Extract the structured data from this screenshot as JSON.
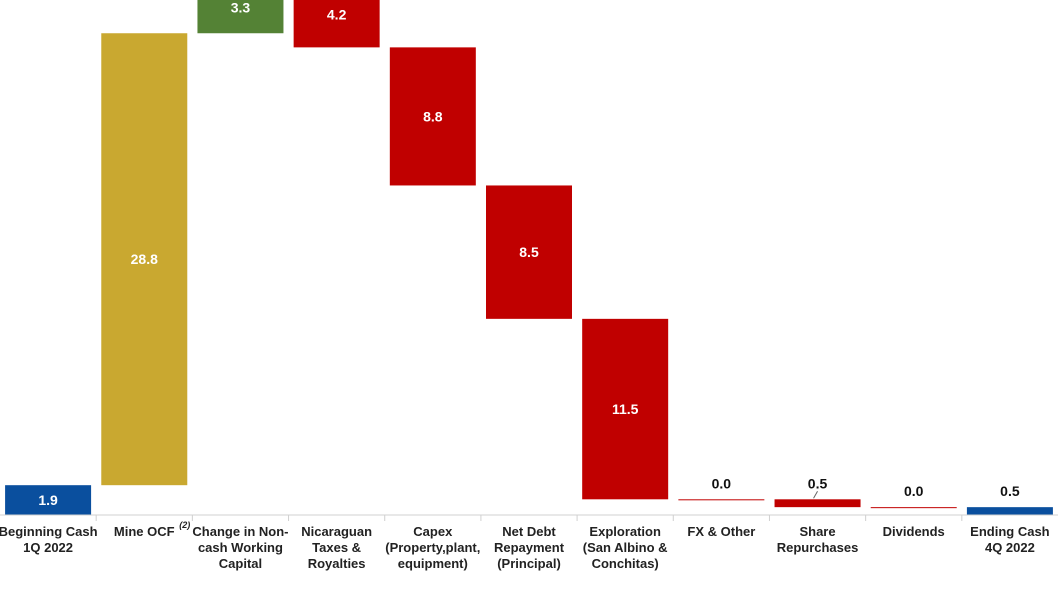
{
  "chart_data": {
    "type": "waterfall",
    "title": "",
    "xlabel": "",
    "ylabel": "",
    "grid": false,
    "legend": "none",
    "ylim": [
      0,
      32.5
    ],
    "steps": [
      {
        "label_lines": [
          "Beginning Cash",
          "1Q 2022"
        ],
        "kind": "total",
        "value": 1.9,
        "label": "1.9"
      },
      {
        "label_lines": [
          "Mine OCF"
        ],
        "kind": "increase",
        "value": 28.8,
        "label": "28.8",
        "footnote": "(2)"
      },
      {
        "label_lines": [
          "Change in Non-",
          "cash Working",
          "Capital"
        ],
        "kind": "increase",
        "value": 3.3,
        "label": "3.3"
      },
      {
        "label_lines": [
          "Nicaraguan",
          "Taxes &",
          "Royalties"
        ],
        "kind": "decrease",
        "value": 4.2,
        "label": "4.2"
      },
      {
        "label_lines": [
          "Capex",
          "(Property,plant,",
          "equipment)"
        ],
        "kind": "decrease",
        "value": 8.8,
        "label": "8.8"
      },
      {
        "label_lines": [
          "Net Debt",
          "Repayment",
          "(Principal)"
        ],
        "kind": "decrease",
        "value": 8.5,
        "label": "8.5"
      },
      {
        "label_lines": [
          "Exploration",
          "(San Albino &",
          "Conchitas)"
        ],
        "kind": "decrease",
        "value": 11.5,
        "label": "11.5"
      },
      {
        "label_lines": [
          "FX & Other"
        ],
        "kind": "decrease",
        "value": 0.0,
        "label": "0.0"
      },
      {
        "label_lines": [
          "Share",
          "Repurchases"
        ],
        "kind": "decrease",
        "value": 0.5,
        "label": "0.5"
      },
      {
        "label_lines": [
          "Dividends"
        ],
        "kind": "decrease",
        "value": 0.0,
        "label": "0.0"
      },
      {
        "label_lines": [
          "Ending Cash",
          "4Q 2022"
        ],
        "kind": "total",
        "value": 0.5,
        "label": "0.5"
      }
    ],
    "colors": {
      "total": "#0a4f9e",
      "ocf": "#c9a830",
      "increase": "#548235",
      "decrease": "#c00000",
      "axis": "#d0d0d0",
      "label_dark": "#111111",
      "label_light": "#ffffff"
    }
  }
}
